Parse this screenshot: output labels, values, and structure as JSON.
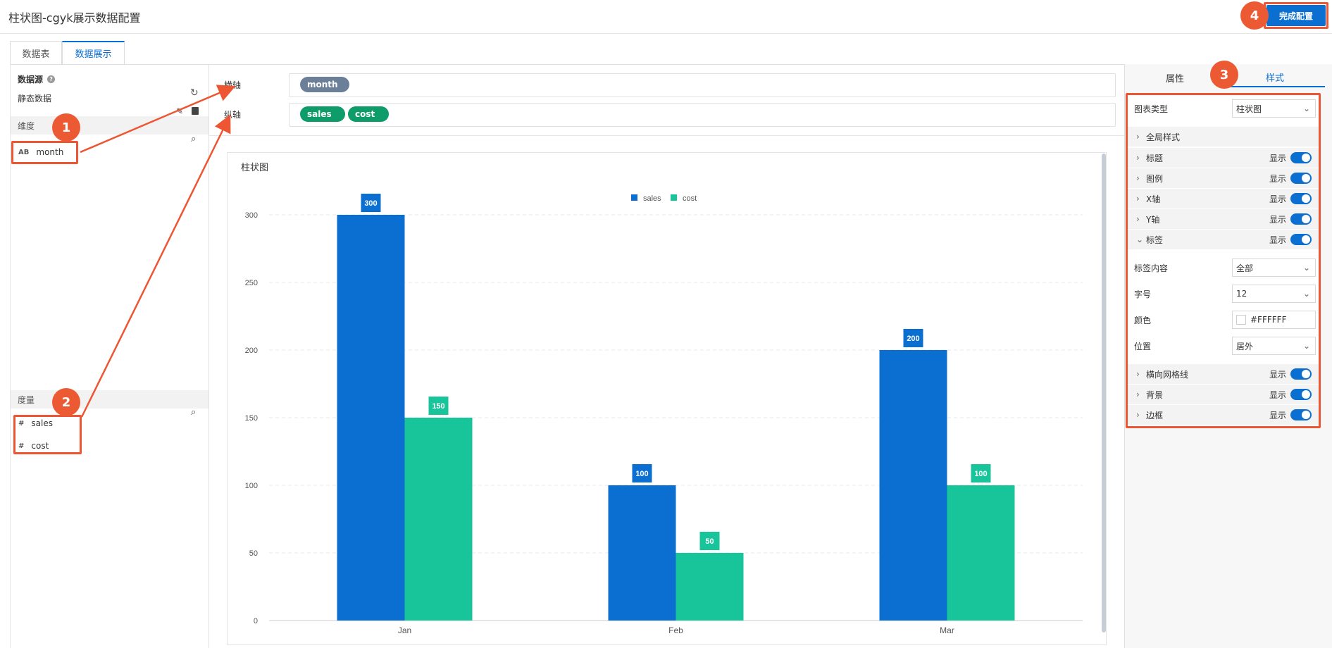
{
  "header": {
    "title": "柱状图-cgyk展示数据配置",
    "finish_label": "完成配置"
  },
  "tabs": [
    "数据表",
    "数据展示"
  ],
  "callouts": [
    "1",
    "2",
    "3",
    "4"
  ],
  "left": {
    "source_label": "数据源",
    "source_value": "静态数据",
    "dimension_label": "维度",
    "dimension_fields": [
      {
        "type": "AB",
        "name": "month"
      }
    ],
    "measure_label": "度量",
    "measure_fields": [
      {
        "type": "#",
        "name": "sales"
      },
      {
        "type": "#",
        "name": "cost"
      }
    ]
  },
  "center": {
    "x_axis_label": "横轴",
    "y_axis_label": "纵轴",
    "x_pills": [
      "month"
    ],
    "y_pills": [
      "sales",
      "cost"
    ],
    "pill_colors": {
      "x": "#6b7f99",
      "y": "#0e9c6a"
    }
  },
  "chart_data": {
    "type": "bar",
    "title": "柱状图",
    "categories": [
      "Jan",
      "Feb",
      "Mar"
    ],
    "series": [
      {
        "name": "sales",
        "values": [
          300,
          100,
          200
        ],
        "color": "#0b6fd1"
      },
      {
        "name": "cost",
        "values": [
          150,
          50,
          100
        ],
        "color": "#18c49a"
      }
    ],
    "ylim": [
      0,
      300
    ],
    "yticks": [
      0,
      50,
      100,
      150,
      200,
      250,
      300
    ],
    "grid": true,
    "legend": "top-center",
    "labels_shown": true
  },
  "right": {
    "tabs": [
      "属性",
      "样式"
    ],
    "chart_type_label": "图表类型",
    "chart_type_value": "柱状图",
    "global_style": "全局样式",
    "toggle_rows": [
      "标题",
      "图例",
      "X轴",
      "Y轴",
      "标签"
    ],
    "show_text": "显示",
    "label_content_label": "标签内容",
    "label_content_value": "全部",
    "font_size_label": "字号",
    "font_size_value": "12",
    "color_label": "颜色",
    "color_value": "#FFFFFF",
    "position_label": "位置",
    "position_value": "居外",
    "bottom_rows": [
      "横向网格线",
      "背景",
      "边框"
    ]
  }
}
